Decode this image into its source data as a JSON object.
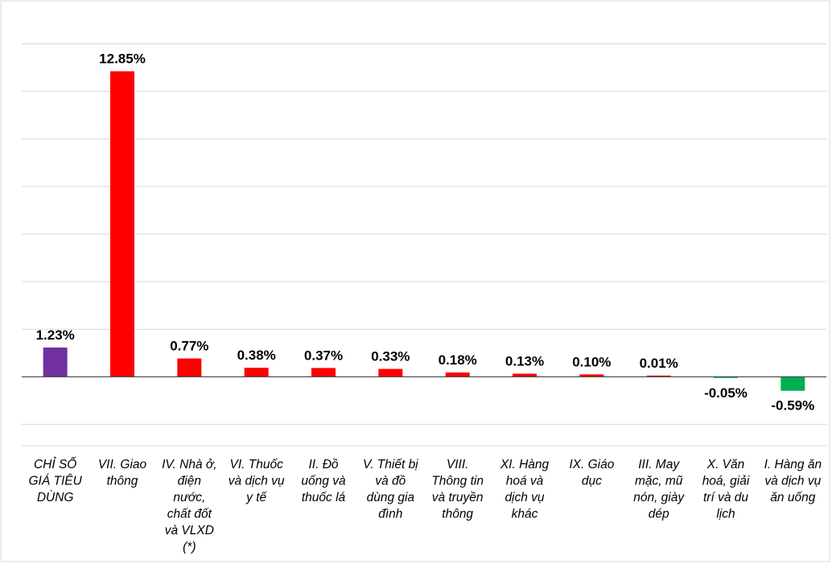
{
  "chart_data": {
    "type": "bar",
    "title": "",
    "xlabel": "",
    "ylabel": "",
    "ylim": [
      -2.9,
      15
    ],
    "grid": true,
    "legend": "none",
    "categories": [
      "CHỈ SỐ GIÁ TIÊU DÙNG",
      "VII. Giao thông",
      "IV. Nhà ở, điện nước, chất đốt và VLXD (*)",
      "VI. Thuốc và dịch vụ y tế",
      "II. Đồ uống và thuốc lá",
      "V. Thiết bị và đồ dùng gia đình",
      "VIII. Thông tin và truyền thông",
      "XI. Hàng hoá và dịch vụ khác",
      "IX. Giáo dục",
      "III. May mặc, mũ nón, giày dép",
      "X. Văn hoá, giải trí và du lịch",
      "I. Hàng ăn và dịch vụ ăn uống"
    ],
    "category_lines": [
      [
        "CHỈ SỐ",
        "GIÁ TIÊU",
        "DÙNG"
      ],
      [
        "VII. Giao",
        "thông"
      ],
      [
        "IV. Nhà ở,",
        "điện",
        "nước,",
        "chất đốt",
        "và VLXD",
        "(*)"
      ],
      [
        "VI. Thuốc",
        "và dịch vụ",
        "y tế"
      ],
      [
        "II. Đồ",
        "uống và",
        "thuốc lá"
      ],
      [
        "V. Thiết bị",
        "và đồ",
        "dùng gia",
        "đình"
      ],
      [
        "VIII.",
        "Thông tin",
        "và truyền",
        "thông"
      ],
      [
        "XI. Hàng",
        "hoá và",
        "dịch vụ",
        "khác"
      ],
      [
        "IX. Giáo",
        "dục"
      ],
      [
        "III. May",
        "mặc, mũ",
        "nón, giày",
        "dép"
      ],
      [
        "X. Văn",
        "hoá, giải",
        "trí và du",
        "lịch"
      ],
      [
        "I. Hàng ăn",
        "và dịch vụ",
        "ăn uống"
      ]
    ],
    "values": [
      1.23,
      12.85,
      0.77,
      0.38,
      0.37,
      0.33,
      0.18,
      0.13,
      0.1,
      0.01,
      -0.05,
      -0.59
    ],
    "data_labels": [
      "1.23%",
      "12.85%",
      "0.77%",
      "0.38%",
      "0.37%",
      "0.33%",
      "0.18%",
      "0.13%",
      "0.10%",
      "0.01%",
      "-0.05%",
      "-0.59%"
    ],
    "colors": [
      "#7030a0",
      "#ff0000",
      "#ff0000",
      "#ff0000",
      "#ff0000",
      "#ff0000",
      "#ff0000",
      "#ff0000",
      "#ff0000",
      "#ff0000",
      "#00b050",
      "#00b050"
    ]
  }
}
